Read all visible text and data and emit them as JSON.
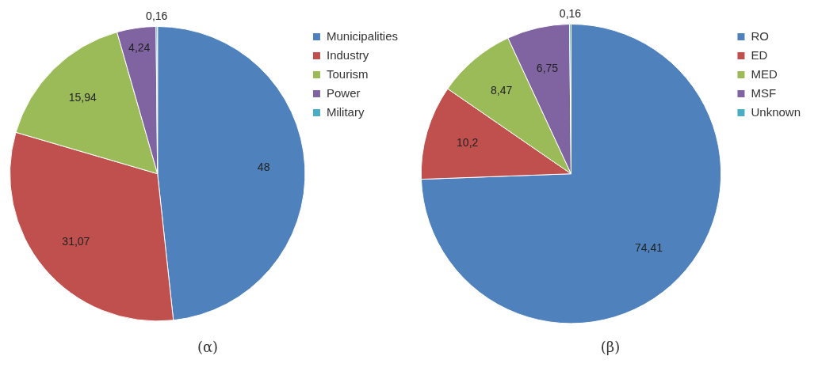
{
  "chart_data": [
    {
      "type": "pie",
      "title": "(α)",
      "categories": [
        "Municipalities",
        "Industry",
        "Tourism",
        "Power",
        "Military"
      ],
      "values": [
        48,
        31.07,
        15.94,
        4.24,
        0.16
      ],
      "value_labels": [
        "48",
        "31,07",
        "15,94",
        "4,24",
        "0,16"
      ],
      "colors": [
        "#4f81bd",
        "#c0504d",
        "#9bbb59",
        "#8064a2",
        "#4bacc6"
      ],
      "legend": "right"
    },
    {
      "type": "pie",
      "title": "(β)",
      "categories": [
        "RO",
        "ED",
        "MED",
        "MSF",
        "Unknown"
      ],
      "values": [
        74.41,
        10.2,
        8.47,
        6.75,
        0.16
      ],
      "value_labels": [
        "74,41",
        "10,2",
        "8,47",
        "6,75",
        "0,16"
      ],
      "colors": [
        "#4f81bd",
        "#c0504d",
        "#9bbb59",
        "#8064a2",
        "#4bacc6"
      ],
      "legend": "right"
    }
  ]
}
